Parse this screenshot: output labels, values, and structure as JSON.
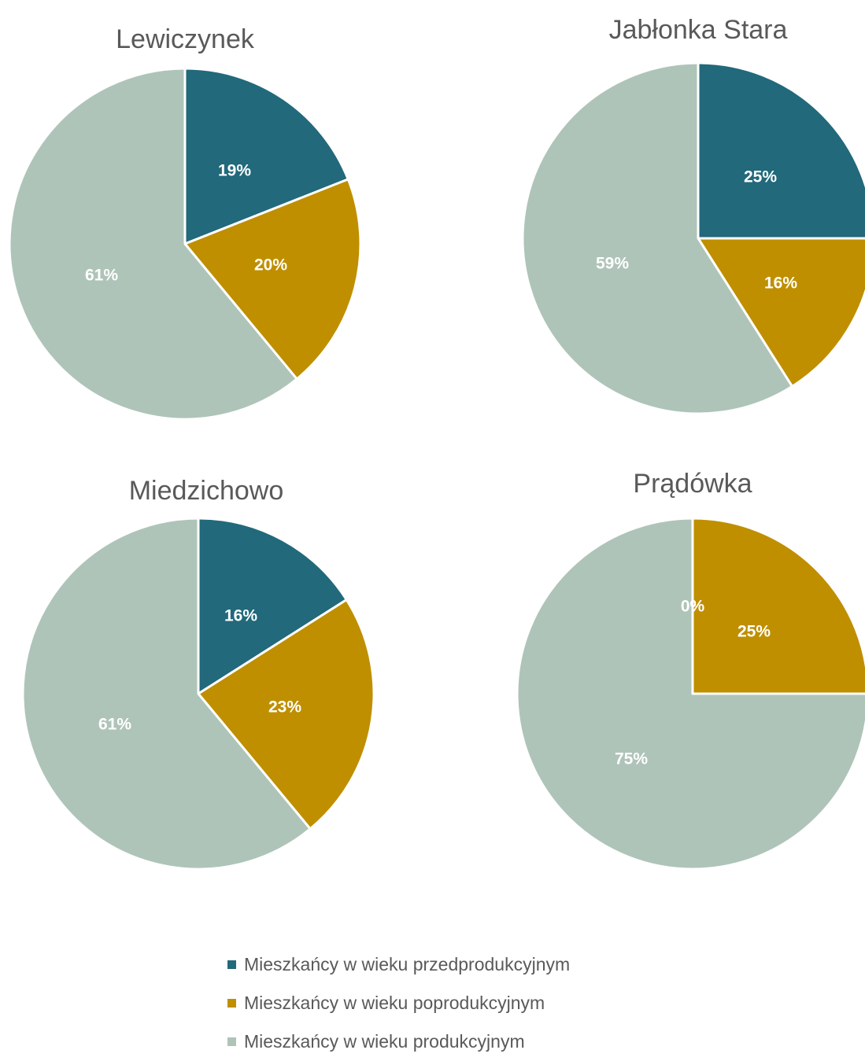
{
  "chart_data": [
    {
      "type": "pie",
      "title": "Lewiczynek",
      "slices": [
        {
          "series": "przedprodukcyjny",
          "value": 19,
          "label": "19%"
        },
        {
          "series": "poprodukcyjny",
          "value": 20,
          "label": "20%"
        },
        {
          "series": "produkcyjny",
          "value": 61,
          "label": "61%"
        }
      ]
    },
    {
      "type": "pie",
      "title": "Jabłonka Stara",
      "slices": [
        {
          "series": "przedprodukcyjny",
          "value": 25,
          "label": "25%"
        },
        {
          "series": "poprodukcyjny",
          "value": 16,
          "label": "16%"
        },
        {
          "series": "produkcyjny",
          "value": 59,
          "label": "59%"
        }
      ]
    },
    {
      "type": "pie",
      "title": "Miedzichowo",
      "slices": [
        {
          "series": "przedprodukcyjny",
          "value": 16,
          "label": "16%"
        },
        {
          "series": "poprodukcyjny",
          "value": 23,
          "label": "23%"
        },
        {
          "series": "produkcyjny",
          "value": 61,
          "label": "61%"
        }
      ]
    },
    {
      "type": "pie",
      "title": "Prądówka",
      "slices": [
        {
          "series": "przedprodukcyjny",
          "value": 0,
          "label": "0%"
        },
        {
          "series": "poprodukcyjny",
          "value": 25,
          "label": "25%"
        },
        {
          "series": "produkcyjny",
          "value": 75,
          "label": "75%"
        }
      ]
    }
  ],
  "legend": {
    "placement": "bottom",
    "items": [
      {
        "key": "przedprodukcyjny",
        "label": "Mieszkańcy w wieku przedprodukcyjnym",
        "color": "#21697B"
      },
      {
        "key": "poprodukcyjny",
        "label": "Mieszkańcy w wieku poprodukcyjnym",
        "color": "#BF8F00"
      },
      {
        "key": "produkcyjny",
        "label": "Mieszkańcy w wieku produkcyjnym",
        "color": "#AFC4B9"
      }
    ]
  },
  "colors": {
    "title_text": "#595959",
    "slice_label_text": "#ffffff",
    "slice_border": "#ffffff"
  }
}
